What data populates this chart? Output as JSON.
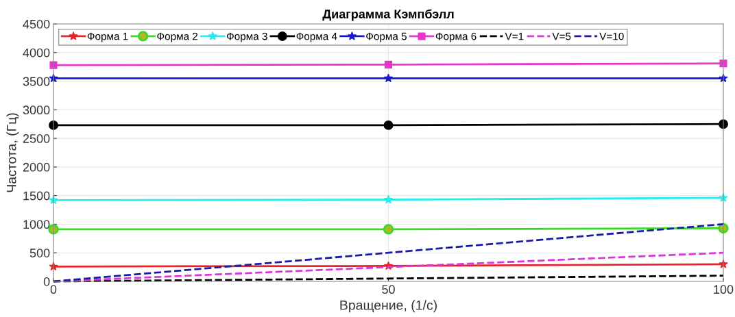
{
  "chart_data": {
    "type": "line",
    "title": "Диаграмма Кэмпбэлл",
    "xlabel": "Вращение, (1/с)",
    "ylabel": "Частота, (Гц)",
    "x": [
      0,
      50,
      100
    ],
    "xlim": [
      0,
      100
    ],
    "xticks": [
      0,
      50,
      100
    ],
    "ylim": [
      0,
      4500
    ],
    "yticks": [
      0,
      500,
      1000,
      1500,
      2000,
      2500,
      3000,
      3500,
      4000,
      4500
    ],
    "grid": true,
    "legend": "top left",
    "line_style": "solid",
    "series": [
      {
        "name": "Форма 1",
        "color": "#e8222a",
        "marker": "star",
        "values": [
          260,
          270,
          300
        ]
      },
      {
        "name": "Форма 2",
        "color": "#33dd22",
        "marker": "circle",
        "values": [
          910,
          910,
          930
        ]
      },
      {
        "name": "Форма 3",
        "color": "#22eeee",
        "marker": "star",
        "values": [
          1420,
          1430,
          1460
        ]
      },
      {
        "name": "Форма 4",
        "color": "#000000",
        "marker": "circle",
        "values": [
          2730,
          2730,
          2750
        ]
      },
      {
        "name": "Форма 5",
        "color": "#1a1acc",
        "marker": "star",
        "values": [
          3550,
          3550,
          3550
        ]
      },
      {
        "name": "Форма 6",
        "color": "#e833cc",
        "marker": "square",
        "values": [
          3780,
          3790,
          3810
        ]
      },
      {
        "name": "V=1",
        "color": "#000000",
        "marker": "none",
        "line_style": "dashed",
        "values": [
          0,
          50,
          100
        ]
      },
      {
        "name": "V=5",
        "color": "#dd33dd",
        "marker": "none",
        "line_style": "dashed",
        "values": [
          0,
          250,
          500
        ]
      },
      {
        "name": "V=10",
        "color": "#1a1aaa",
        "marker": "none",
        "line_style": "dashed",
        "values": [
          0,
          500,
          1000
        ]
      }
    ]
  }
}
